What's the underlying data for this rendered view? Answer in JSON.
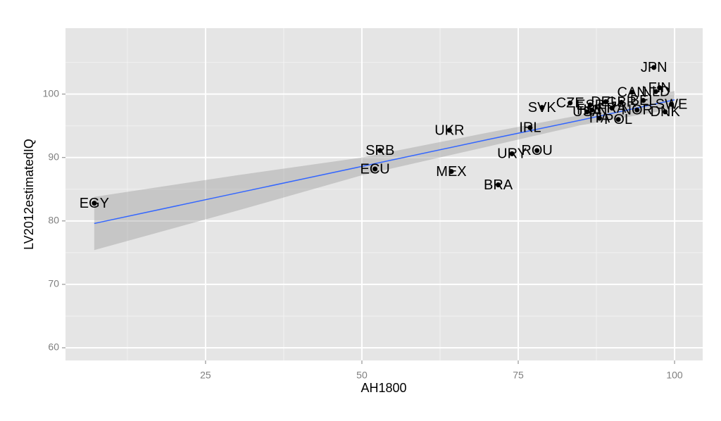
{
  "chart_data": {
    "type": "scatter",
    "x_label": "AH1800",
    "y_label": "LV2012estimatedIQ",
    "xlim": [
      2.6,
      104.5
    ],
    "ylim": [
      58,
      110.4
    ],
    "xticks": [
      25,
      50,
      75,
      100
    ],
    "yticks": [
      60,
      70,
      80,
      90,
      100
    ],
    "x_minor_ticks": [
      12.5,
      37.5,
      62.5,
      87.5
    ],
    "y_minor_ticks": [
      65,
      75,
      85,
      95,
      105
    ],
    "grid": true,
    "panel_color": "#e5e5e5",
    "point_color": "#000000",
    "fit_color": "#3366ff",
    "ribbon_color": "#999999",
    "points": {
      "labels": [
        "EGY",
        "SRB",
        "ECU",
        "UKR",
        "MEX",
        "BRA",
        "IRL",
        "URY",
        "ROU",
        "SVK",
        "CZE",
        "ESP",
        "USA",
        "HUN",
        "ITA",
        "POL",
        "DEU",
        "FRA",
        "GBR",
        "NOR",
        "DNK",
        "SWE",
        "CAN",
        "NLD",
        "FIN",
        "JPN",
        "BEL"
      ],
      "x": [
        7.2,
        52.9,
        52.1,
        64,
        64.3,
        71.8,
        76.9,
        74,
        78,
        78.8,
        83.3,
        86.5,
        86,
        86.8,
        88,
        91,
        89,
        90,
        91.5,
        94,
        98.5,
        99.5,
        93.2,
        97,
        97.6,
        96.7,
        95
      ],
      "y": [
        82.8,
        91.1,
        88.2,
        94.3,
        87.8,
        85.7,
        94.7,
        90.6,
        91.1,
        97.9,
        98.6,
        98.3,
        97.2,
        97.5,
        96.2,
        96.0,
        98.8,
        97.8,
        98.7,
        97.5,
        97.2,
        98.4,
        100.3,
        100.4,
        101,
        104.2,
        99
      ]
    },
    "fit": {
      "x": [
        7.2,
        30,
        50,
        70,
        85,
        100
      ],
      "y": [
        79.6,
        84.4,
        88.6,
        92.8,
        95.9,
        99.1
      ],
      "ymin": [
        75.4,
        81.6,
        87.2,
        91.7,
        95.1,
        97.7
      ],
      "ymax": [
        83.8,
        87.2,
        90.0,
        93.9,
        96.7,
        100.5
      ]
    }
  }
}
